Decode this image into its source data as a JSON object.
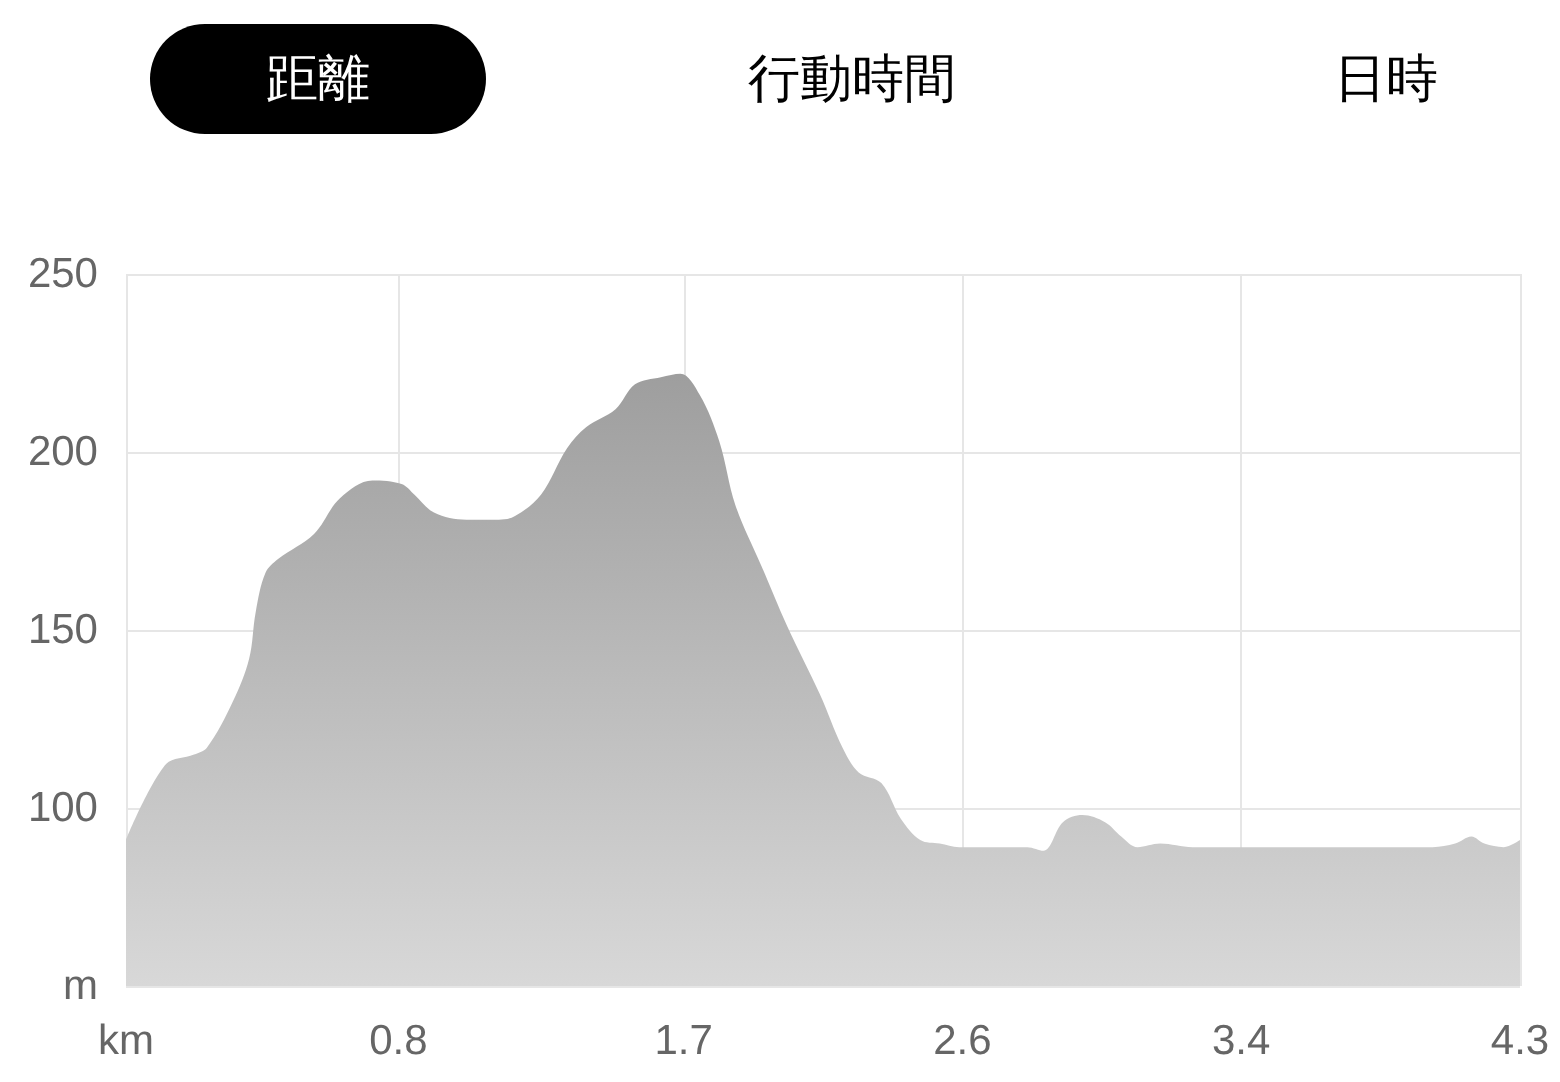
{
  "chart_data": {
    "type": "area",
    "annotations": [
      "距離",
      "行動時間",
      "日時"
    ],
    "x": [
      0,
      0.12,
      0.21,
      0.25,
      0.33,
      0.38,
      0.4,
      0.43,
      0.47,
      0.58,
      0.66,
      0.76,
      0.85,
      0.89,
      0.95,
      1.05,
      1.15,
      1.2,
      1.28,
      1.36,
      1.42,
      1.51,
      1.57,
      1.65,
      1.71,
      1.77,
      1.83,
      1.88,
      1.96,
      2.04,
      2.14,
      2.21,
      2.26,
      2.33,
      2.39,
      2.45,
      2.51,
      2.57,
      2.7,
      2.78,
      2.83,
      2.89,
      2.95,
      3.02,
      3.07,
      3.12,
      3.19,
      3.29,
      3.44,
      3.64,
      3.73,
      4.03,
      4.1,
      4.15,
      4.19,
      4.25,
      4.3
    ],
    "values": [
      91,
      112,
      115,
      117,
      130,
      142,
      155,
      166,
      170,
      177,
      187,
      192,
      191,
      188,
      183,
      181,
      181,
      182,
      188,
      201,
      207,
      212,
      219,
      221,
      222,
      216,
      203,
      185,
      168,
      151,
      132,
      117,
      110,
      107,
      97,
      91,
      90,
      89,
      89,
      89,
      88,
      96,
      98,
      96,
      92,
      89,
      90,
      89,
      89,
      89,
      89,
      89,
      90,
      92,
      90,
      89,
      91
    ],
    "color": "#9e9e9e",
    "xlim": [
      0,
      4.3
    ],
    "xticks": [
      {
        "value": 0,
        "label": "km"
      },
      {
        "value": 0.84,
        "label": "0.8"
      },
      {
        "value": 1.72,
        "label": "1.7"
      },
      {
        "value": 2.58,
        "label": "2.6"
      },
      {
        "value": 3.44,
        "label": "3.4"
      },
      4.3
    ],
    "ylim": [
      50,
      250
    ],
    "yticks": [
      {
        "value": 50,
        "label": "m"
      },
      100,
      150,
      200,
      250
    ],
    "grid": true
  }
}
